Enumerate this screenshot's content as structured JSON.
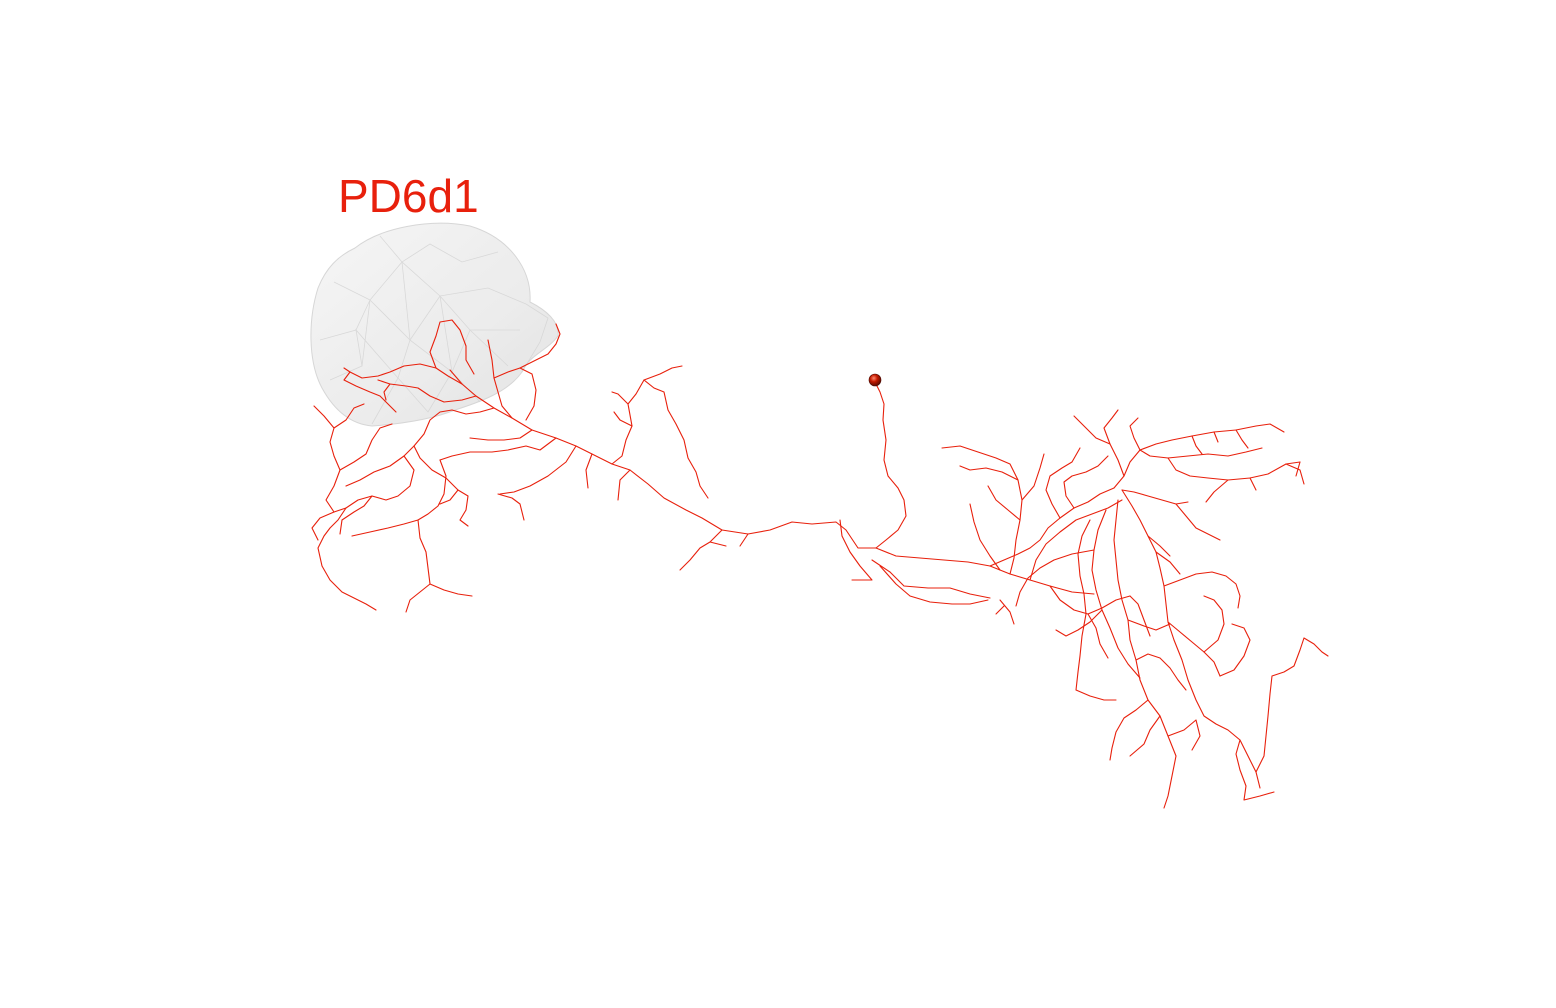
{
  "neuron": {
    "name": "PD6d1",
    "color": "#e8200c"
  },
  "neuropil": {
    "color": "#d8d8d8"
  }
}
